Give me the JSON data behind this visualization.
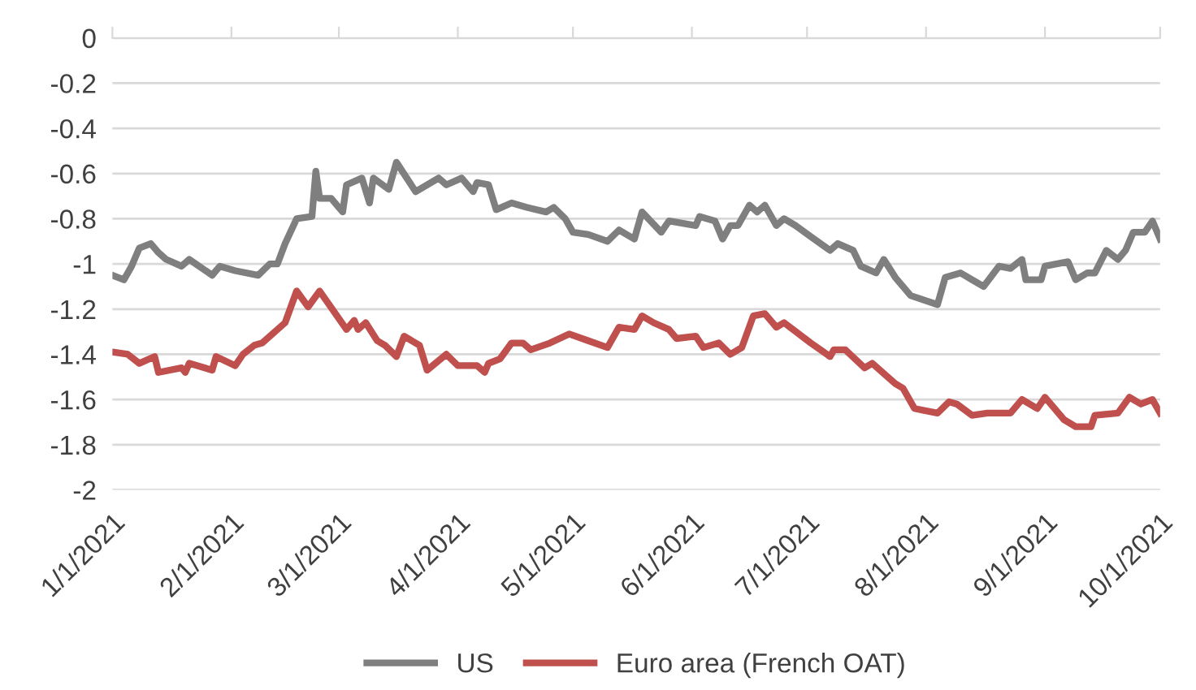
{
  "chart_data": {
    "type": "line",
    "xlim": [
      "2021-01-01",
      "2021-10-01"
    ],
    "xticks": [
      {
        "value": "2021-01-01",
        "label": "1/1/2021"
      },
      {
        "value": "2021-02-01",
        "label": "2/1/2021"
      },
      {
        "value": "2021-03-01",
        "label": "3/1/2021"
      },
      {
        "value": "2021-04-01",
        "label": "4/1/2021"
      },
      {
        "value": "2021-05-01",
        "label": "5/1/2021"
      },
      {
        "value": "2021-06-01",
        "label": "6/1/2021"
      },
      {
        "value": "2021-07-01",
        "label": "7/1/2021"
      },
      {
        "value": "2021-08-01",
        "label": "8/1/2021"
      },
      {
        "value": "2021-09-01",
        "label": "9/1/2021"
      },
      {
        "value": "2021-10-01",
        "label": "10/1/2021"
      }
    ],
    "ylim": [
      -2,
      0
    ],
    "yticks": [
      0,
      -0.2,
      -0.4,
      -0.6,
      -0.8,
      -1,
      -1.2,
      -1.4,
      -1.6,
      -1.8,
      -2
    ],
    "grid": "y",
    "legend": "bottom",
    "marker": "none",
    "line_style": "solid",
    "series": [
      {
        "name": "US",
        "color": "#7f7f7f",
        "x": [
          "2021-01-01",
          "2021-01-04",
          "2021-01-06",
          "2021-01-08",
          "2021-01-11",
          "2021-01-13",
          "2021-01-15",
          "2021-01-19",
          "2021-01-21",
          "2021-01-27",
          "2021-01-29",
          "2021-02-02",
          "2021-02-08",
          "2021-02-11",
          "2021-02-13",
          "2021-02-15",
          "2021-02-18",
          "2021-02-22",
          "2021-02-23",
          "2021-02-24",
          "2021-02-27",
          "2021-03-02",
          "2021-03-03",
          "2021-03-07",
          "2021-03-09",
          "2021-03-10",
          "2021-03-14",
          "2021-03-16",
          "2021-03-21",
          "2021-03-27",
          "2021-03-29",
          "2021-04-02",
          "2021-04-05",
          "2021-04-06",
          "2021-04-09",
          "2021-04-11",
          "2021-04-15",
          "2021-04-19",
          "2021-04-24",
          "2021-04-26",
          "2021-04-29",
          "2021-05-01",
          "2021-05-05",
          "2021-05-10",
          "2021-05-13",
          "2021-05-17",
          "2021-05-19",
          "2021-05-24",
          "2021-05-26",
          "2021-06-02",
          "2021-06-03",
          "2021-06-07",
          "2021-06-09",
          "2021-06-11",
          "2021-06-13",
          "2021-06-16",
          "2021-06-18",
          "2021-06-20",
          "2021-06-23",
          "2021-06-25",
          "2021-06-28",
          "2021-07-02",
          "2021-07-07",
          "2021-07-09",
          "2021-07-13",
          "2021-07-15",
          "2021-07-19",
          "2021-07-21",
          "2021-07-24",
          "2021-07-28",
          "2021-08-04",
          "2021-08-06",
          "2021-08-10",
          "2021-08-13",
          "2021-08-16",
          "2021-08-20",
          "2021-08-23",
          "2021-08-26",
          "2021-08-27",
          "2021-08-31",
          "2021-09-01",
          "2021-09-07",
          "2021-09-09",
          "2021-09-12",
          "2021-09-14",
          "2021-09-17",
          "2021-09-20",
          "2021-09-22",
          "2021-09-24",
          "2021-09-27",
          "2021-09-29",
          "2021-10-01"
        ],
        "values": [
          -1.05,
          -1.07,
          -1.01,
          -0.93,
          -0.91,
          -0.95,
          -0.98,
          -1.01,
          -0.98,
          -1.05,
          -1.01,
          -1.03,
          -1.05,
          -1.0,
          -1.0,
          -0.91,
          -0.8,
          -0.79,
          -0.59,
          -0.71,
          -0.71,
          -0.77,
          -0.65,
          -0.62,
          -0.73,
          -0.62,
          -0.67,
          -0.55,
          -0.68,
          -0.62,
          -0.65,
          -0.62,
          -0.68,
          -0.64,
          -0.65,
          -0.76,
          -0.73,
          -0.75,
          -0.77,
          -0.75,
          -0.8,
          -0.86,
          -0.87,
          -0.9,
          -0.85,
          -0.89,
          -0.77,
          -0.86,
          -0.81,
          -0.83,
          -0.79,
          -0.81,
          -0.89,
          -0.83,
          -0.83,
          -0.74,
          -0.77,
          -0.74,
          -0.83,
          -0.8,
          -0.83,
          -0.88,
          -0.94,
          -0.91,
          -0.94,
          -1.01,
          -1.04,
          -0.98,
          -1.06,
          -1.14,
          -1.18,
          -1.06,
          -1.04,
          -1.07,
          -1.1,
          -1.01,
          -1.02,
          -0.98,
          -1.07,
          -1.07,
          -1.01,
          -0.99,
          -1.07,
          -1.04,
          -1.04,
          -0.94,
          -0.98,
          -0.94,
          -0.86,
          -0.86,
          -0.81,
          -0.89
        ]
      },
      {
        "name": "Euro area (French OAT)",
        "color": "#c0504d",
        "x": [
          "2021-01-01",
          "2021-01-05",
          "2021-01-08",
          "2021-01-12",
          "2021-01-13",
          "2021-01-19",
          "2021-01-20",
          "2021-01-21",
          "2021-01-27",
          "2021-01-28",
          "2021-02-02",
          "2021-02-04",
          "2021-02-07",
          "2021-02-09",
          "2021-02-15",
          "2021-02-18",
          "2021-02-21",
          "2021-02-24",
          "2021-03-03",
          "2021-03-05",
          "2021-03-06",
          "2021-03-08",
          "2021-03-11",
          "2021-03-13",
          "2021-03-16",
          "2021-03-18",
          "2021-03-22",
          "2021-03-24",
          "2021-03-29",
          "2021-04-01",
          "2021-04-06",
          "2021-04-08",
          "2021-04-09",
          "2021-04-12",
          "2021-04-15",
          "2021-04-18",
          "2021-04-20",
          "2021-04-25",
          "2021-04-30",
          "2021-05-05",
          "2021-05-10",
          "2021-05-13",
          "2021-05-17",
          "2021-05-19",
          "2021-05-22",
          "2021-05-26",
          "2021-05-28",
          "2021-06-02",
          "2021-06-04",
          "2021-06-08",
          "2021-06-11",
          "2021-06-14",
          "2021-06-17",
          "2021-06-20",
          "2021-06-23",
          "2021-06-25",
          "2021-07-02",
          "2021-07-07",
          "2021-07-08",
          "2021-07-11",
          "2021-07-16",
          "2021-07-18",
          "2021-07-24",
          "2021-07-26",
          "2021-07-29",
          "2021-08-04",
          "2021-08-07",
          "2021-08-09",
          "2021-08-13",
          "2021-08-17",
          "2021-08-23",
          "2021-08-26",
          "2021-08-30",
          "2021-09-01",
          "2021-09-06",
          "2021-09-09",
          "2021-09-13",
          "2021-09-14",
          "2021-09-20",
          "2021-09-23",
          "2021-09-26",
          "2021-09-29",
          "2021-10-01"
        ],
        "values": [
          -1.39,
          -1.4,
          -1.44,
          -1.41,
          -1.48,
          -1.46,
          -1.48,
          -1.44,
          -1.47,
          -1.41,
          -1.45,
          -1.4,
          -1.36,
          -1.35,
          -1.26,
          -1.12,
          -1.19,
          -1.12,
          -1.29,
          -1.25,
          -1.29,
          -1.26,
          -1.34,
          -1.36,
          -1.41,
          -1.32,
          -1.36,
          -1.47,
          -1.4,
          -1.45,
          -1.45,
          -1.48,
          -1.44,
          -1.42,
          -1.35,
          -1.35,
          -1.38,
          -1.35,
          -1.31,
          -1.34,
          -1.37,
          -1.28,
          -1.29,
          -1.23,
          -1.26,
          -1.29,
          -1.33,
          -1.32,
          -1.37,
          -1.35,
          -1.4,
          -1.37,
          -1.23,
          -1.22,
          -1.28,
          -1.26,
          -1.35,
          -1.41,
          -1.38,
          -1.38,
          -1.46,
          -1.44,
          -1.53,
          -1.55,
          -1.64,
          -1.66,
          -1.61,
          -1.62,
          -1.67,
          -1.66,
          -1.66,
          -1.6,
          -1.64,
          -1.59,
          -1.69,
          -1.72,
          -1.72,
          -1.67,
          -1.66,
          -1.59,
          -1.62,
          -1.6,
          -1.66
        ]
      }
    ]
  }
}
